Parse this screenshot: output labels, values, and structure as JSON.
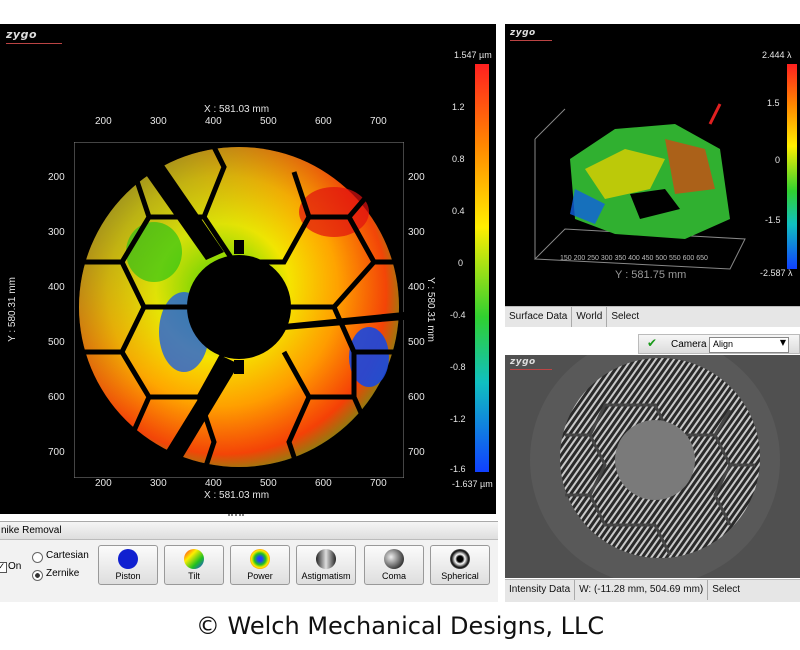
{
  "left_panel": {
    "logo": "zygo",
    "x_title": "X : 581.03 mm",
    "y_title": "Y : 580.31 mm",
    "x_ticks": [
      "200",
      "300",
      "400",
      "500",
      "600",
      "700"
    ],
    "y_ticks": [
      "200",
      "300",
      "400",
      "500",
      "600",
      "700"
    ],
    "colorbar_max": "1.547 µm",
    "colorbar_min": "-1.637 µm",
    "colorbar_ticks": [
      "1.2",
      "0.8",
      "0.4",
      "0",
      "-0.4",
      "-0.8",
      "-1.2",
      "-1.6"
    ]
  },
  "surface_panel": {
    "logo": "zygo",
    "colorbar_max": "2.444 λ",
    "colorbar_min": "-2.587 λ",
    "colorbar_ticks": [
      "1.5",
      "0",
      "-1.5"
    ],
    "x_axis_ticks": "150 200 250 300 350 400 450 500 550 600 650",
    "y_axis_title": "Y : 581.75 mm",
    "tabs": [
      "Surface Data",
      "World",
      "Select"
    ]
  },
  "intensity_panel": {
    "logo": "zygo",
    "toolbar_label": "Camera",
    "camera_mode": "Align",
    "status": [
      "Intensity Data",
      "W: (-11.28 mm, 504.69 mm)",
      "Select"
    ]
  },
  "zernike": {
    "title": "nike Removal",
    "on_label": "On",
    "options": [
      "Cartesian",
      "Zernike"
    ],
    "selected": "Zernike",
    "buttons": [
      "Piston",
      "Tilt",
      "Power",
      "Astigmatism",
      "Coma",
      "Spherical"
    ]
  },
  "caption": "© Welch Mechanical Designs, LLC",
  "colors": {
    "panel_bg": "#000000",
    "chrome": "#e6e6e6",
    "accent": "#0b6ad8"
  }
}
